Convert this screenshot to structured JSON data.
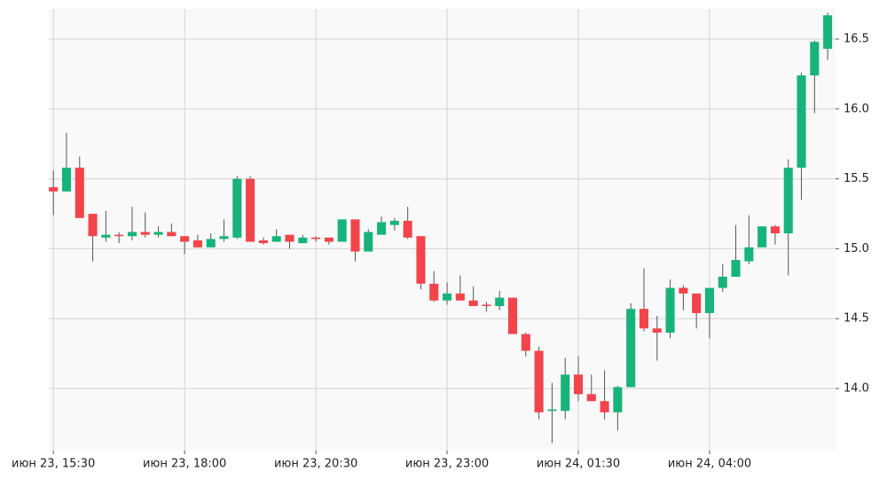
{
  "chart_data": {
    "type": "candlestick",
    "open": [
      15.44,
      15.41,
      15.58,
      15.25,
      15.08,
      15.1,
      15.09,
      15.12,
      15.1,
      15.12,
      15.09,
      15.06,
      15.01,
      15.07,
      15.08,
      15.5,
      15.06,
      15.05,
      15.1,
      15.04,
      15.08,
      15.08,
      15.05,
      15.21,
      14.98,
      15.1,
      15.17,
      15.2,
      15.09,
      14.75,
      14.63,
      14.68,
      14.63,
      14.6,
      14.59,
      14.65,
      14.39,
      14.27,
      13.84,
      13.84,
      14.1,
      13.96,
      13.91,
      13.83,
      14.01,
      14.57,
      14.43,
      14.4,
      14.72,
      14.68,
      14.54,
      14.72,
      14.8,
      14.91,
      15.01,
      15.16,
      15.11,
      15.58,
      16.24,
      16.43
    ],
    "high": [
      15.56,
      15.83,
      15.66,
      15.25,
      15.27,
      15.12,
      15.3,
      15.26,
      15.16,
      15.18,
      15.09,
      15.1,
      15.11,
      15.21,
      15.52,
      15.52,
      15.08,
      15.14,
      15.1,
      15.1,
      15.09,
      15.08,
      15.21,
      15.21,
      15.14,
      15.23,
      15.22,
      15.3,
      15.09,
      14.84,
      14.76,
      14.81,
      14.73,
      14.62,
      14.7,
      14.65,
      14.4,
      14.3,
      14.04,
      14.22,
      14.23,
      14.1,
      14.13,
      14.02,
      14.61,
      14.86,
      14.52,
      14.78,
      14.74,
      14.68,
      14.72,
      14.89,
      15.17,
      15.24,
      15.16,
      15.17,
      15.64,
      16.26,
      16.49,
      16.69
    ],
    "low": [
      15.24,
      15.41,
      15.22,
      14.91,
      15.05,
      15.04,
      15.06,
      15.08,
      15.08,
      15.09,
      14.96,
      15.01,
      15.01,
      15.05,
      15.07,
      15.05,
      15.03,
      15.05,
      15.0,
      15.04,
      15.05,
      15.03,
      15.05,
      14.91,
      14.98,
      15.1,
      15.13,
      15.07,
      14.71,
      14.62,
      14.6,
      14.63,
      14.59,
      14.55,
      14.56,
      14.39,
      14.23,
      13.78,
      13.61,
      13.78,
      13.91,
      13.91,
      13.78,
      13.7,
      14.01,
      14.41,
      14.2,
      14.36,
      14.56,
      14.43,
      14.36,
      14.69,
      14.8,
      14.89,
      15.01,
      15.03,
      14.81,
      15.35,
      15.97,
      16.35
    ],
    "close": [
      15.41,
      15.58,
      15.22,
      15.09,
      15.1,
      15.09,
      15.12,
      15.1,
      15.12,
      15.09,
      15.05,
      15.01,
      15.07,
      15.09,
      15.5,
      15.05,
      15.04,
      15.09,
      15.05,
      15.08,
      15.07,
      15.05,
      15.21,
      14.98,
      15.12,
      15.19,
      15.2,
      15.08,
      14.75,
      14.63,
      14.68,
      14.63,
      14.59,
      14.59,
      14.65,
      14.39,
      14.27,
      13.83,
      13.85,
      14.1,
      13.96,
      13.91,
      13.83,
      14.01,
      14.57,
      14.43,
      14.4,
      14.72,
      14.68,
      14.54,
      14.72,
      14.8,
      14.92,
      15.01,
      15.16,
      15.11,
      15.58,
      16.24,
      16.48,
      16.67
    ],
    "up_color": "#16b47a",
    "down_color": "#f2444a",
    "xlim": [
      -0.35,
      59.6
    ],
    "xticks": [
      {
        "value": 0,
        "label": "июн 23, 15:30"
      },
      {
        "value": 10,
        "label": "июн 23, 18:00"
      },
      {
        "value": 20,
        "label": "июн 23, 20:30"
      },
      {
        "value": 30,
        "label": "июн 23, 23:00"
      },
      {
        "value": 40,
        "label": "июн 24, 01:30"
      },
      {
        "value": 50,
        "label": "июн 24, 04:00"
      }
    ],
    "ylim": [
      13.556,
      16.716
    ],
    "yticks": [
      {
        "value": 14,
        "label": "14.0"
      },
      14.5,
      {
        "value": 15,
        "label": "15.0"
      },
      15.5,
      {
        "value": 16,
        "label": "16.0"
      },
      16.5
    ],
    "grid": true
  }
}
